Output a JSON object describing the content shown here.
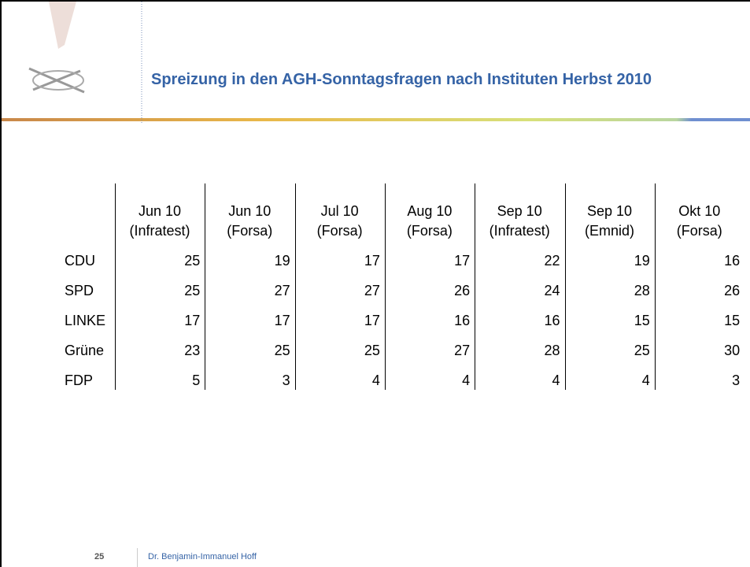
{
  "header": {
    "title": "Spreizung in den AGH-Sonntagsfragen nach Instituten Herbst 2010"
  },
  "table": {
    "columns": [
      [
        "Jun 10",
        "(Infratest)"
      ],
      [
        "Jun 10",
        "(Forsa)"
      ],
      [
        "Jul 10",
        "(Forsa)"
      ],
      [
        "Aug 10",
        "(Forsa)"
      ],
      [
        "Sep 10",
        "(Infratest)"
      ],
      [
        "Sep 10",
        "(Emnid)"
      ],
      [
        "Okt 10",
        "(Forsa)"
      ]
    ],
    "rows": [
      [
        "CDU",
        25,
        19,
        17,
        17,
        22,
        19,
        16
      ],
      [
        "SPD",
        25,
        27,
        27,
        26,
        24,
        28,
        26
      ],
      [
        "LINKE",
        17,
        17,
        17,
        16,
        16,
        15,
        15
      ],
      [
        "Grüne",
        23,
        25,
        25,
        27,
        28,
        25,
        30
      ],
      [
        "FDP",
        5,
        3,
        4,
        4,
        4,
        4,
        3
      ]
    ]
  },
  "footer": {
    "page": "25",
    "author": "Dr. Benjamin-Immanuel Hoff"
  }
}
